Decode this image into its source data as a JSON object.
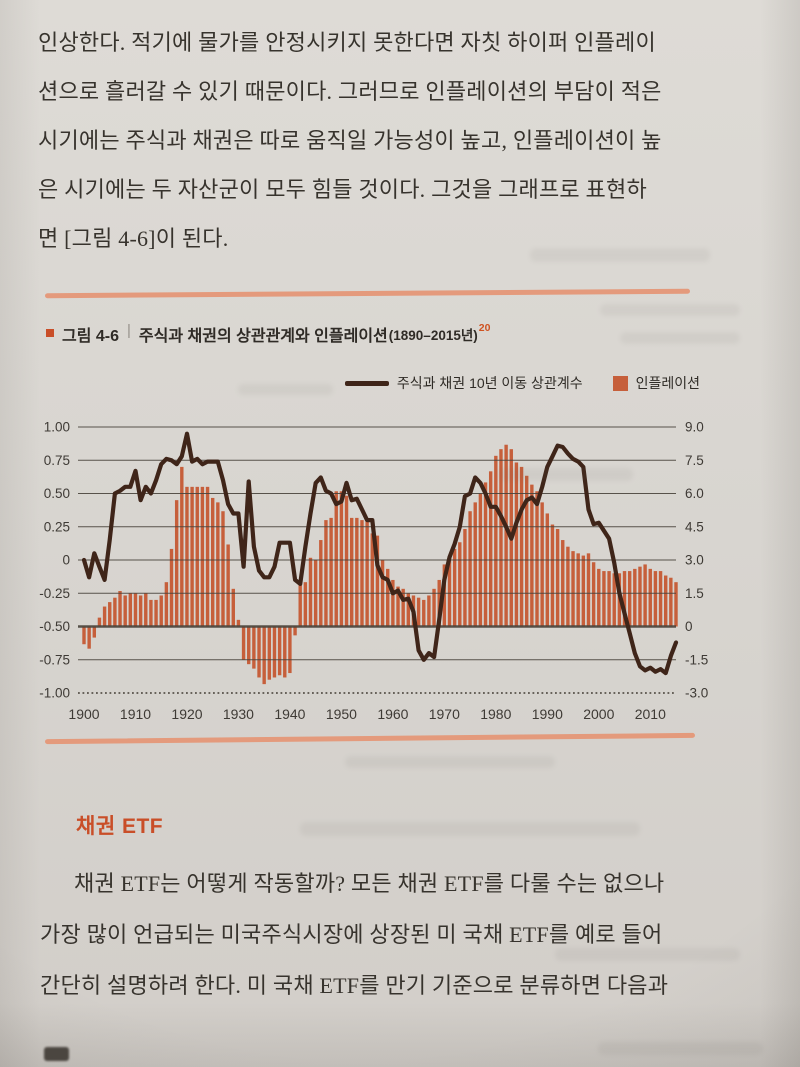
{
  "page": {
    "para1_lines": [
      "인상한다. 적기에 물가를 안정시키지 못한다면 자칫 하이퍼 인플레이",
      "션으로 흘러갈 수 있기 때문이다. 그러므로 인플레이션의 부담이 적은",
      "시기에는 주식과 채권은 따로 움직일 가능성이 높고, 인플레이션이 높",
      "은 시기에는 두 자산군이 모두 힘들 것이다. 그것을 그래프로 표현하",
      "면 [그림 4-6]이 된다."
    ],
    "figure": {
      "label": "그림 4-6",
      "title": "주식과 채권의 상관관계와 인플레이션",
      "range": "(1890–2015년)",
      "footnote_ref": "20"
    },
    "section_heading": "채권 ETF",
    "para2_lines": [
      "채권 ETF는 어떻게 작동할까? 모든 채권 ETF를 다룰 수는 없으나",
      "가장 많이 언급되는 미국주식시장에 상장된 미 국채 ETF를 예로 들어",
      "간단히 설명하려 한다. 미 국채 ETF를 만기 기준으로 분류하면 다음과"
    ]
  },
  "colors": {
    "bar": "#c65f3b",
    "line": "#3f2519",
    "rule": "#e49a7c",
    "heading_orange": "#c94e28",
    "footnote_orange": "#cf5322",
    "grid": "#4a443c",
    "text": "#37332d"
  },
  "chart_data": {
    "type": "bar",
    "title": "주식과 채권의 상관관계와 인플레이션(1890–2015년)",
    "legend_position": "top-right",
    "grid": true,
    "years": {
      "start": 1900,
      "step": 1,
      "count": 116
    },
    "x_ticks": [
      "1900",
      "1910",
      "1920",
      "1930",
      "1940",
      "1950",
      "1960",
      "1970",
      "1980",
      "1990",
      "2000",
      "2010"
    ],
    "left_axis": {
      "min": -1.0,
      "max": 1.0,
      "ticks": [
        "1.00",
        "0.75",
        "0.50",
        "0.25",
        "0",
        "-0.25",
        "-0.50",
        "-0.75",
        "-1.00"
      ]
    },
    "right_axis": {
      "min": -3.0,
      "max": 9.0,
      "ticks": [
        "9.0",
        "7.5",
        "6.0",
        "4.5",
        "3.0",
        "1.5",
        "0",
        "-1.5",
        "-3.0"
      ]
    },
    "series": [
      {
        "name": "주식과 채권 10년 이동 상관계수",
        "type": "line",
        "axis": "left",
        "values": [
          0.0,
          -0.13,
          0.05,
          -0.05,
          -0.15,
          0.15,
          0.5,
          0.52,
          0.55,
          0.55,
          0.67,
          0.45,
          0.55,
          0.5,
          0.6,
          0.72,
          0.76,
          0.75,
          0.72,
          0.78,
          0.95,
          0.74,
          0.76,
          0.72,
          0.74,
          0.74,
          0.74,
          0.6,
          0.42,
          0.35,
          0.35,
          -0.05,
          0.59,
          0.1,
          -0.08,
          -0.13,
          -0.13,
          -0.05,
          0.13,
          0.13,
          0.13,
          -0.15,
          -0.18,
          0.1,
          0.35,
          0.58,
          0.62,
          0.52,
          0.5,
          0.42,
          0.44,
          0.58,
          0.45,
          0.46,
          0.38,
          0.3,
          0.3,
          -0.04,
          -0.13,
          -0.15,
          -0.25,
          -0.23,
          -0.3,
          -0.29,
          -0.39,
          -0.68,
          -0.75,
          -0.7,
          -0.73,
          -0.45,
          -0.15,
          0.02,
          0.12,
          0.25,
          0.48,
          0.5,
          0.62,
          0.58,
          0.5,
          0.4,
          0.4,
          0.33,
          0.25,
          0.16,
          0.28,
          0.38,
          0.45,
          0.47,
          0.42,
          0.55,
          0.7,
          0.78,
          0.86,
          0.85,
          0.8,
          0.76,
          0.74,
          0.7,
          0.38,
          0.27,
          0.28,
          0.22,
          0.16,
          -0.02,
          -0.25,
          -0.4,
          -0.55,
          -0.7,
          -0.8,
          -0.83,
          -0.81,
          -0.84,
          -0.82,
          -0.85,
          -0.72,
          -0.62
        ]
      },
      {
        "name": "인플레이션",
        "type": "bar",
        "axis": "right",
        "values": [
          -0.8,
          -1.0,
          -0.5,
          0.4,
          0.9,
          1.1,
          1.3,
          1.6,
          1.4,
          1.5,
          1.5,
          1.4,
          1.5,
          1.2,
          1.2,
          1.4,
          2.0,
          3.5,
          5.7,
          7.2,
          6.3,
          6.3,
          6.3,
          6.3,
          6.3,
          5.8,
          5.6,
          5.2,
          3.7,
          1.7,
          0.3,
          -1.5,
          -1.7,
          -1.9,
          -2.3,
          -2.6,
          -2.4,
          -2.3,
          -2.2,
          -2.3,
          -2.1,
          -0.4,
          2.0,
          2.0,
          3.1,
          3.0,
          3.9,
          4.8,
          4.9,
          6.1,
          6.1,
          5.9,
          4.9,
          4.9,
          4.8,
          4.8,
          4.2,
          4.1,
          3.0,
          2.6,
          2.1,
          1.8,
          1.7,
          1.5,
          1.4,
          1.3,
          1.2,
          1.4,
          1.7,
          2.1,
          2.8,
          3.1,
          3.5,
          3.8,
          4.4,
          5.2,
          5.6,
          6.0,
          6.5,
          7.0,
          7.7,
          8.0,
          8.2,
          8.0,
          7.4,
          7.2,
          6.8,
          6.4,
          6.1,
          5.6,
          5.1,
          4.6,
          4.4,
          3.9,
          3.6,
          3.4,
          3.3,
          3.2,
          3.3,
          2.9,
          2.6,
          2.5,
          2.5,
          2.4,
          2.4,
          2.5,
          2.5,
          2.6,
          2.7,
          2.8,
          2.6,
          2.5,
          2.5,
          2.3,
          2.2,
          2.0
        ]
      }
    ]
  }
}
